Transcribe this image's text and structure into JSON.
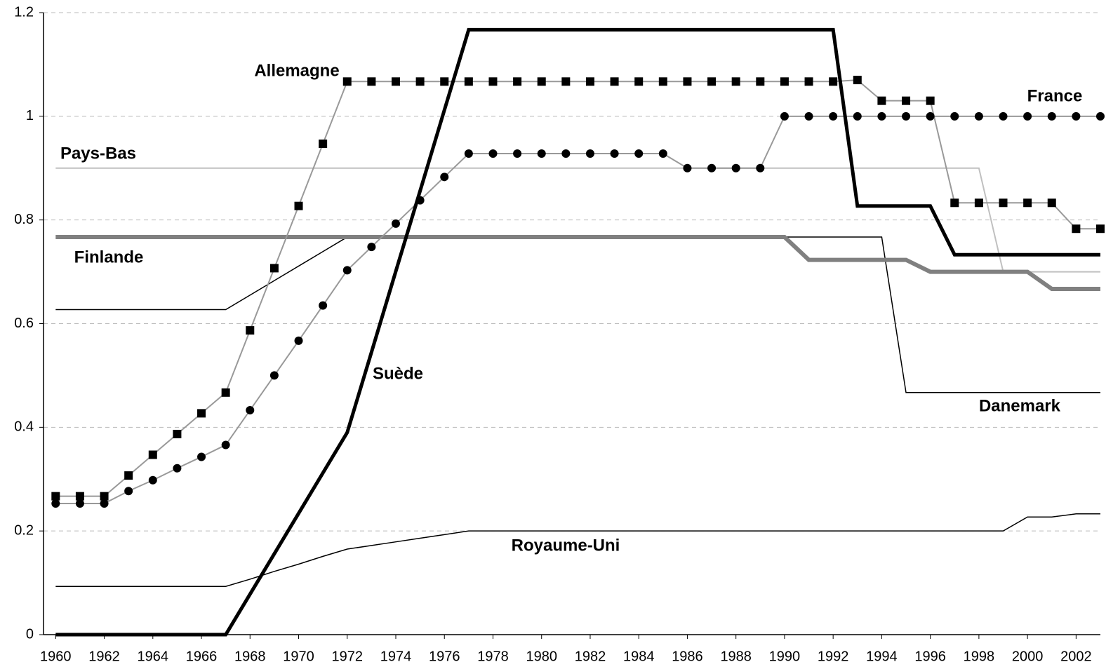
{
  "chart_data": {
    "type": "line",
    "x": [
      1960,
      1961,
      1962,
      1963,
      1964,
      1965,
      1966,
      1967,
      1968,
      1969,
      1970,
      1971,
      1972,
      1973,
      1974,
      1975,
      1976,
      1977,
      1978,
      1979,
      1980,
      1981,
      1982,
      1983,
      1984,
      1985,
      1986,
      1987,
      1988,
      1989,
      1990,
      1991,
      1992,
      1993,
      1994,
      1995,
      1996,
      1997,
      1998,
      1999,
      2000,
      2001,
      2002,
      2003
    ],
    "xlim": [
      1959.5,
      2003
    ],
    "xticks": [
      1960,
      1962,
      1964,
      1966,
      1968,
      1970,
      1972,
      1974,
      1976,
      1978,
      1980,
      1982,
      1984,
      1986,
      1988,
      1990,
      1992,
      1994,
      1996,
      1998,
      2000,
      2002
    ],
    "ylim": [
      0,
      1.2
    ],
    "yticks": [
      0,
      0.2,
      0.4,
      0.6,
      0.8,
      1,
      1.2
    ],
    "grid": true,
    "series": [
      {
        "name": "Allemagne",
        "color": "#999999",
        "marker": "square",
        "values": [
          0.267,
          0.267,
          0.267,
          0.307,
          0.347,
          0.387,
          0.427,
          0.467,
          0.587,
          0.707,
          0.827,
          0.947,
          1.067,
          1.067,
          1.067,
          1.067,
          1.067,
          1.067,
          1.067,
          1.067,
          1.067,
          1.067,
          1.067,
          1.067,
          1.067,
          1.067,
          1.067,
          1.067,
          1.067,
          1.067,
          1.067,
          1.067,
          1.067,
          1.07,
          1.03,
          1.03,
          1.03,
          0.833,
          0.833,
          0.833,
          0.833,
          0.833,
          0.783,
          0.783
        ]
      },
      {
        "name": "France",
        "color": "#999999",
        "marker": "circle",
        "values": [
          0.253,
          0.253,
          0.253,
          0.277,
          0.298,
          0.321,
          0.343,
          0.366,
          0.433,
          0.5,
          0.567,
          0.635,
          0.703,
          0.748,
          0.793,
          0.838,
          0.883,
          0.928,
          0.928,
          0.928,
          0.928,
          0.928,
          0.928,
          0.928,
          0.928,
          0.928,
          0.9,
          0.9,
          0.9,
          0.9,
          1,
          1,
          1,
          1,
          1,
          1,
          1,
          1,
          1,
          1,
          1,
          1,
          1,
          1
        ]
      },
      {
        "name": "Suède",
        "color": "#000000",
        "values": [
          0,
          0,
          0,
          0,
          0,
          0,
          0,
          0,
          0.078,
          0.156,
          0.234,
          0.312,
          0.39,
          0.545,
          0.701,
          0.856,
          1.012,
          1.167,
          1.167,
          1.167,
          1.167,
          1.167,
          1.167,
          1.167,
          1.167,
          1.167,
          1.167,
          1.167,
          1.167,
          1.167,
          1.167,
          1.167,
          1.167,
          0.827,
          0.827,
          0.827,
          0.827,
          0.733,
          0.733,
          0.733,
          0.733,
          0.733,
          0.733,
          0.733
        ]
      },
      {
        "name": "Finlande",
        "color": "#808080",
        "values": [
          0.767,
          0.767,
          0.767,
          0.767,
          0.767,
          0.767,
          0.767,
          0.767,
          0.767,
          0.767,
          0.767,
          0.767,
          0.767,
          0.767,
          0.767,
          0.767,
          0.767,
          0.767,
          0.767,
          0.767,
          0.767,
          0.767,
          0.767,
          0.767,
          0.767,
          0.767,
          0.767,
          0.767,
          0.767,
          0.767,
          0.767,
          0.723,
          0.723,
          0.723,
          0.723,
          0.723,
          0.7,
          0.7,
          0.7,
          0.7,
          0.7,
          0.667,
          0.667,
          0.667
        ]
      },
      {
        "name": "Pays-Bas",
        "color": "#c0c0c0",
        "values": [
          0.9,
          0.9,
          0.9,
          0.9,
          0.9,
          0.9,
          0.9,
          0.9,
          0.9,
          0.9,
          0.9,
          0.9,
          0.9,
          0.9,
          0.9,
          0.9,
          0.9,
          0.9,
          0.9,
          0.9,
          0.9,
          0.9,
          0.9,
          0.9,
          0.9,
          0.9,
          0.9,
          0.9,
          0.9,
          0.9,
          0.9,
          0.9,
          0.9,
          0.9,
          0.9,
          0.9,
          0.9,
          0.9,
          0.9,
          0.7,
          0.7,
          0.7,
          0.7,
          0.7
        ]
      },
      {
        "name": "Danemark",
        "color": "#000000",
        "values": [
          0.627,
          0.627,
          0.627,
          0.627,
          0.627,
          0.627,
          0.627,
          0.627,
          0.655,
          0.683,
          0.711,
          0.739,
          0.767,
          0.767,
          0.767,
          0.767,
          0.767,
          0.767,
          0.767,
          0.767,
          0.767,
          0.767,
          0.767,
          0.767,
          0.767,
          0.767,
          0.767,
          0.767,
          0.767,
          0.767,
          0.767,
          0.767,
          0.767,
          0.767,
          0.767,
          0.467,
          0.467,
          0.467,
          0.467,
          0.467,
          0.467,
          0.467,
          0.467,
          0.467
        ]
      },
      {
        "name": "Royaume-Uni",
        "color": "#000000",
        "values": [
          0.093,
          0.093,
          0.093,
          0.093,
          0.093,
          0.093,
          0.093,
          0.093,
          0.107,
          0.122,
          0.136,
          0.151,
          0.165,
          0.172,
          0.179,
          0.186,
          0.193,
          0.2,
          0.2,
          0.2,
          0.2,
          0.2,
          0.2,
          0.2,
          0.2,
          0.2,
          0.2,
          0.2,
          0.2,
          0.2,
          0.2,
          0.2,
          0.2,
          0.2,
          0.2,
          0.2,
          0.2,
          0.2,
          0.2,
          0.2,
          0.227,
          0.227,
          0.233,
          0.233
        ]
      }
    ]
  }
}
